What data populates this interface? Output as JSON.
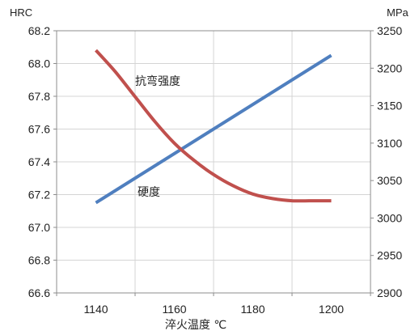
{
  "chart_data": {
    "type": "line",
    "title": "",
    "xlabel": "淬火温度 ℃",
    "x_ticks": [
      1140,
      1160,
      1180,
      1200
    ],
    "xlim": [
      1130,
      1210
    ],
    "left_axis": {
      "unit": "HRC",
      "ylim": [
        66.6,
        68.2
      ],
      "ticks": [
        "66.6",
        "66.8",
        "67.0",
        "67.2",
        "67.4",
        "67.6",
        "67.8",
        "68.0",
        "68.2"
      ]
    },
    "right_axis": {
      "unit": "MPa",
      "ylim": [
        2900,
        3250
      ],
      "ticks": [
        "2900",
        "2950",
        "3000",
        "3050",
        "3100",
        "3150",
        "3200",
        "3250"
      ]
    },
    "grid": true,
    "series": [
      {
        "name": "硬度",
        "axis": "left",
        "color": "#4f7fbf",
        "x": [
          1140,
          1200
        ],
        "y": [
          67.15,
          68.05
        ]
      },
      {
        "name": "抗弯强度",
        "axis": "right",
        "color": "#c0504d",
        "x": [
          1140,
          1145,
          1150,
          1155,
          1160,
          1165,
          1170,
          1175,
          1180,
          1185,
          1190,
          1195,
          1200
        ],
        "y": [
          3224,
          3195,
          3162,
          3129,
          3100,
          3077,
          3058,
          3043,
          3032,
          3026,
          3023,
          3023,
          3023
        ]
      }
    ],
    "annotations": [
      {
        "text": "抗弯强度",
        "series": "抗弯强度"
      },
      {
        "text": "硬度",
        "series": "硬度"
      }
    ]
  }
}
